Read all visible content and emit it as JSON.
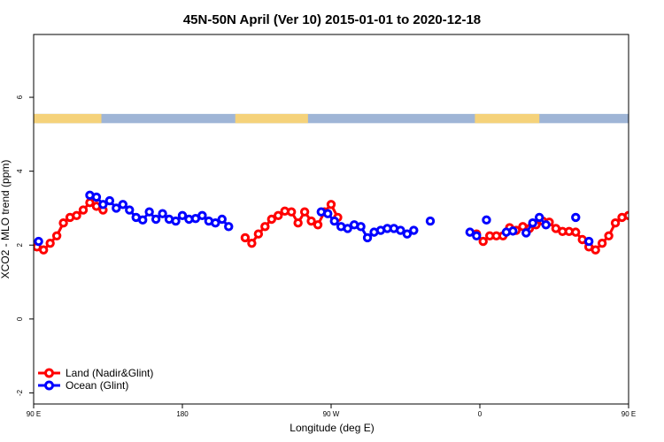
{
  "chart_data": {
    "type": "line",
    "title": "45N-50N April (Ver 10)   2015-01-01 to 2020-12-18",
    "xlabel": "Longitude (deg E)",
    "ylabel": "XCO2 - MLO trend (ppm)",
    "xlim": [
      90,
      450
    ],
    "ylim": [
      -2.3,
      7.7
    ],
    "xticks": [
      {
        "value": 90,
        "label": "90 E"
      },
      {
        "value": 180,
        "label": "180"
      },
      {
        "value": 270,
        "label": "90 W"
      },
      {
        "value": 360,
        "label": "0"
      },
      {
        "value": 450,
        "label": "90 E"
      },
      {
        "value": 540,
        "label": "180"
      }
    ],
    "yticks": [
      {
        "value": -2,
        "label": "-2"
      },
      {
        "value": 0,
        "label": "0"
      },
      {
        "value": 2,
        "label": "2"
      },
      {
        "value": 4,
        "label": "4"
      },
      {
        "value": 6,
        "label": "6"
      }
    ],
    "land_ocean_strip": {
      "y_range": [
        5.3,
        5.55
      ],
      "land_color": "#f5d27a",
      "ocean_color": "#9fb5d6",
      "land_segments": [
        [
          90,
          131
        ],
        [
          212,
          256
        ],
        [
          357,
          396
        ],
        [
          475,
          516
        ]
      ]
    },
    "legend": {
      "position": "bottom-left"
    },
    "series": [
      {
        "name": "Land (Nadir&Glint)",
        "color": "#ff0000",
        "lines": [
          [
            [
              92,
              1.95
            ],
            [
              96,
              1.87
            ],
            [
              100,
              2.05
            ],
            [
              104,
              2.25
            ],
            [
              108,
              2.6
            ],
            [
              112,
              2.75
            ],
            [
              116,
              2.8
            ],
            [
              120,
              2.95
            ],
            [
              124,
              3.15
            ],
            [
              128,
              3.05
            ],
            [
              132,
              2.95
            ]
          ],
          [
            [
              218,
              2.2
            ],
            [
              222,
              2.05
            ],
            [
              226,
              2.3
            ],
            [
              230,
              2.5
            ],
            [
              234,
              2.7
            ],
            [
              238,
              2.8
            ],
            [
              242,
              2.92
            ],
            [
              246,
              2.9
            ],
            [
              250,
              2.6
            ],
            [
              254,
              2.9
            ],
            [
              258,
              2.65
            ],
            [
              262,
              2.55
            ],
            [
              266,
              2.9
            ],
            [
              270,
              3.1
            ],
            [
              274,
              2.75
            ]
          ],
          [
            [
              358,
              2.3
            ],
            [
              362,
              2.1
            ],
            [
              366,
              2.25
            ],
            [
              370,
              2.25
            ],
            [
              374,
              2.25
            ],
            [
              378,
              2.47
            ],
            [
              382,
              2.4
            ],
            [
              386,
              2.5
            ],
            [
              390,
              2.45
            ],
            [
              394,
              2.55
            ],
            [
              398,
              2.65
            ],
            [
              402,
              2.62
            ],
            [
              406,
              2.45
            ],
            [
              410,
              2.37
            ],
            [
              414,
              2.37
            ],
            [
              418,
              2.35
            ],
            [
              422,
              2.15
            ],
            [
              426,
              1.95
            ],
            [
              430,
              1.87
            ],
            [
              434,
              2.05
            ],
            [
              438,
              2.25
            ],
            [
              442,
              2.6
            ],
            [
              446,
              2.75
            ],
            [
              450,
              2.8
            ]
          ],
          [
            [
              450,
              2.8
            ],
            [
              454,
              2.95
            ],
            [
              458,
              3.15
            ],
            [
              462,
              3.05
            ],
            [
              466,
              2.95
            ]
          ]
        ]
      },
      {
        "name": "Ocean (Glint)",
        "color": "#0000ff",
        "lines": [
          [
            [
              93,
              2.1
            ]
          ],
          [
            [
              124,
              3.35
            ],
            [
              128,
              3.3
            ],
            [
              132,
              3.1
            ],
            [
              136,
              3.2
            ],
            [
              140,
              3.0
            ],
            [
              144,
              3.1
            ],
            [
              148,
              2.95
            ],
            [
              152,
              2.75
            ],
            [
              156,
              2.68
            ],
            [
              160,
              2.9
            ],
            [
              164,
              2.7
            ],
            [
              168,
              2.85
            ],
            [
              172,
              2.7
            ],
            [
              176,
              2.65
            ],
            [
              180,
              2.8
            ],
            [
              184,
              2.7
            ],
            [
              188,
              2.72
            ],
            [
              192,
              2.8
            ],
            [
              196,
              2.65
            ],
            [
              200,
              2.6
            ],
            [
              204,
              2.7
            ],
            [
              208,
              2.5
            ]
          ],
          [
            [
              264,
              2.9
            ],
            [
              268,
              2.85
            ],
            [
              272,
              2.65
            ],
            [
              276,
              2.5
            ],
            [
              280,
              2.45
            ],
            [
              284,
              2.55
            ],
            [
              288,
              2.5
            ],
            [
              292,
              2.2
            ],
            [
              296,
              2.35
            ],
            [
              300,
              2.4
            ],
            [
              304,
              2.45
            ],
            [
              308,
              2.45
            ],
            [
              312,
              2.4
            ],
            [
              316,
              2.3
            ],
            [
              320,
              2.4
            ]
          ],
          [
            [
              330,
              2.65
            ]
          ],
          [
            [
              354,
              2.35
            ],
            [
              358,
              2.25
            ]
          ],
          [
            [
              364,
              2.68
            ]
          ],
          [
            [
              376,
              2.35
            ],
            [
              380,
              2.38
            ]
          ],
          [
            [
              388,
              2.33
            ],
            [
              392,
              2.6
            ],
            [
              396,
              2.75
            ],
            [
              400,
              2.55
            ]
          ],
          [
            [
              418,
              2.75
            ]
          ],
          [
            [
              426,
              2.1
            ]
          ],
          [
            [
              458,
              3.35
            ],
            [
              462,
              3.3
            ],
            [
              466,
              3.1
            ],
            [
              470,
              3.2
            ],
            [
              474,
              3.0
            ],
            [
              478,
              3.1
            ],
            [
              482,
              2.95
            ],
            [
              486,
              2.75
            ],
            [
              490,
              2.68
            ],
            [
              494,
              2.9
            ]
          ]
        ]
      }
    ]
  }
}
